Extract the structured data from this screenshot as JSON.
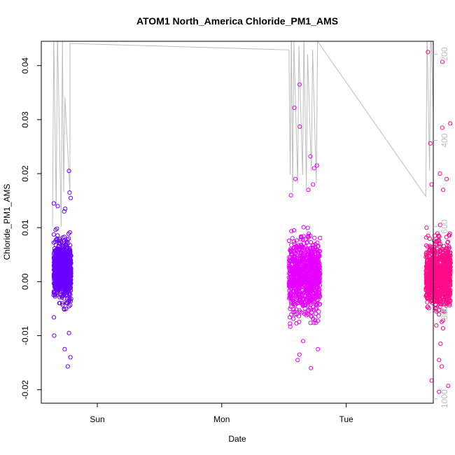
{
  "chart_data": {
    "type": "scatter",
    "title": "ATOM1 North_America Chloride_PM1_AMS",
    "xlabel": "Date",
    "ylabel": "Chloride_PM1_AMS",
    "x_ticks": [
      "Sun",
      "Mon",
      "Tue"
    ],
    "y_ticks": [
      "-0.02",
      "-0.01",
      "0.00",
      "0.01",
      "0.02",
      "0.03",
      "0.04"
    ],
    "y_tick_values": [
      -0.02,
      -0.01,
      0.0,
      0.01,
      0.02,
      0.03,
      0.04
    ],
    "ylim": [
      -0.0225,
      0.0445
    ],
    "right_axis_ticks": [
      "200",
      "400",
      "600",
      "800",
      "1000"
    ],
    "right_axis_values": [
      200,
      400,
      600,
      800,
      1000
    ],
    "right_axis_range": [
      1010,
      170
    ],
    "right_axis_reversed": true,
    "grid": false,
    "marker": "open-circle",
    "x_unit": "days",
    "xlim": [
      -0.45,
      2.7
    ],
    "x_tick_values": [
      0,
      1,
      2
    ],
    "series": [
      {
        "color": "#6a00ff",
        "x_range": [
          -0.35,
          -0.21
        ],
        "center": 0.002,
        "spread": 0.0045,
        "outliers": [
          0.0205,
          0.0165,
          0.0155,
          0.0145,
          0.014,
          0.0135,
          0.013,
          -0.0095,
          -0.01,
          -0.0125,
          -0.014,
          -0.0157
        ]
      },
      {
        "color": "#e600ff",
        "x_range": [
          1.54,
          1.79
        ],
        "center": 0.001,
        "spread": 0.006,
        "outliers": [
          0.0365,
          0.0322,
          0.0287,
          0.0232,
          0.0215,
          0.021,
          0.019,
          0.018,
          0.017,
          0.016,
          -0.011,
          -0.0125,
          -0.0135,
          -0.0145,
          -0.016
        ]
      },
      {
        "color": "#ff0a8a",
        "x_range": [
          2.64,
          2.84
        ],
        "center": 0.001,
        "spread": 0.0055,
        "outliers": [
          0.0425,
          0.0407,
          0.0293,
          0.0285,
          0.0256,
          0.02,
          0.019,
          0.018,
          0.017,
          -0.0115,
          -0.0145,
          -0.0157,
          -0.0183,
          -0.0193,
          -0.0204
        ]
      }
    ],
    "line": {
      "color": "#bdbdbd",
      "axis": "right",
      "path": [
        [
          -0.36,
          600
        ],
        [
          -0.35,
          160
        ],
        [
          -0.33,
          560
        ],
        [
          -0.32,
          150
        ],
        [
          -0.29,
          600
        ],
        [
          -0.28,
          155
        ],
        [
          -0.27,
          520
        ],
        [
          -0.26,
          300
        ],
        [
          -0.22,
          520
        ],
        [
          -0.22,
          175
        ],
        [
          1.54,
          190
        ],
        [
          1.55,
          480
        ],
        [
          1.56,
          140
        ],
        [
          1.57,
          520
        ],
        [
          1.58,
          170
        ],
        [
          1.61,
          500
        ],
        [
          1.62,
          180
        ],
        [
          1.65,
          480
        ],
        [
          1.66,
          160
        ],
        [
          1.68,
          510
        ],
        [
          1.69,
          200
        ],
        [
          1.72,
          470
        ],
        [
          1.73,
          190
        ],
        [
          1.76,
          500
        ],
        [
          1.77,
          170
        ],
        [
          2.64,
          530
        ],
        [
          2.65,
          150
        ],
        [
          2.67,
          470
        ],
        [
          2.68,
          130
        ],
        [
          2.71,
          440
        ],
        [
          2.72,
          140
        ],
        [
          2.75,
          480
        ],
        [
          2.79,
          140
        ],
        [
          2.8,
          520
        ],
        [
          2.82,
          180
        ],
        [
          2.83,
          270
        ],
        [
          2.84,
          230
        ],
        [
          2.85,
          280
        ]
      ]
    }
  }
}
